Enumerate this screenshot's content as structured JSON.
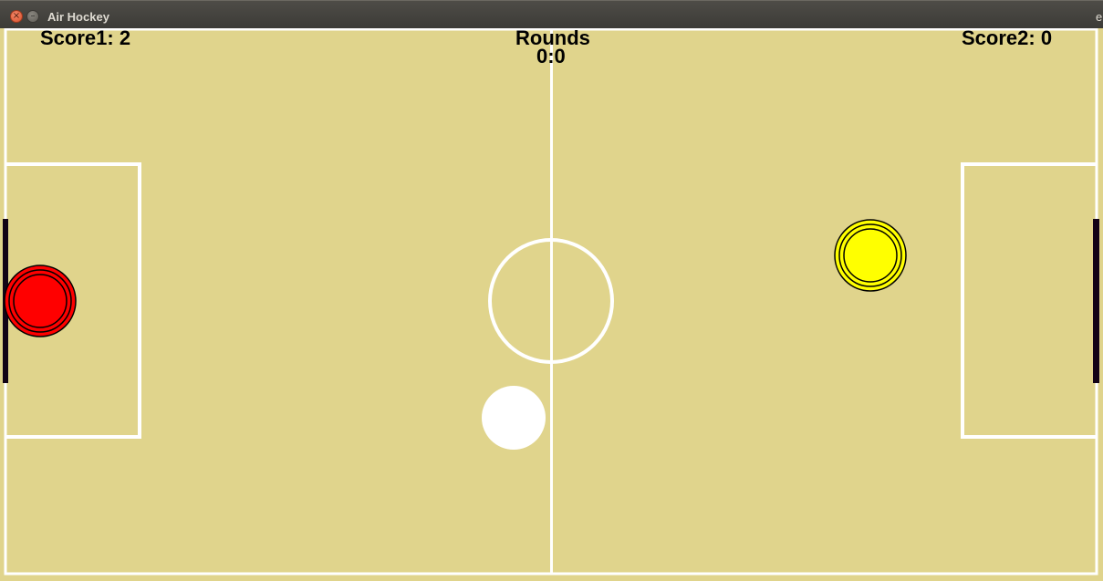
{
  "window": {
    "title": "Air Hockey",
    "edge_text": "e",
    "close_glyph": "×",
    "minimize_glyph": "–"
  },
  "hud": {
    "score1": "Score1: 2",
    "score2": "Score2: 0",
    "rounds_label": "Rounds",
    "rounds_value": "0:0"
  },
  "colors": {
    "field": "#e0d48c",
    "lines": "#ffffff",
    "player1_mallet": "#ff0000",
    "player2_mallet": "#ffff00",
    "puck": "#ffffff",
    "goal": "#120316"
  }
}
